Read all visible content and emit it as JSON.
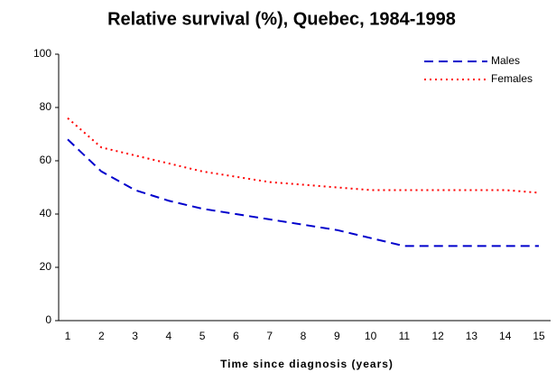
{
  "chart_data": {
    "type": "line",
    "title": "Relative survival (%), Quebec, 1984-1998",
    "x_label": "Time since diagnosis (years)",
    "categories": [
      "1",
      "2",
      "3",
      "4",
      "5",
      "6",
      "7",
      "8",
      "9",
      "10",
      "11",
      "12",
      "13",
      "14",
      "15"
    ],
    "series": [
      {
        "name": "Males",
        "color": "#0000cc",
        "dash": "dashed",
        "values": [
          68,
          56,
          49,
          45,
          42,
          40,
          38,
          36,
          34,
          31,
          28,
          28,
          28,
          28,
          28
        ]
      },
      {
        "name": "Females",
        "color": "#ff0000",
        "dash": "dotted",
        "values": [
          76,
          65,
          62,
          59,
          56,
          54,
          52,
          51,
          50,
          49,
          49,
          49,
          49,
          49,
          48
        ]
      }
    ],
    "ylim": [
      0,
      100
    ],
    "yticks": [
      0,
      20,
      40,
      60,
      80,
      100
    ],
    "grid": false,
    "legend": "upper right"
  }
}
